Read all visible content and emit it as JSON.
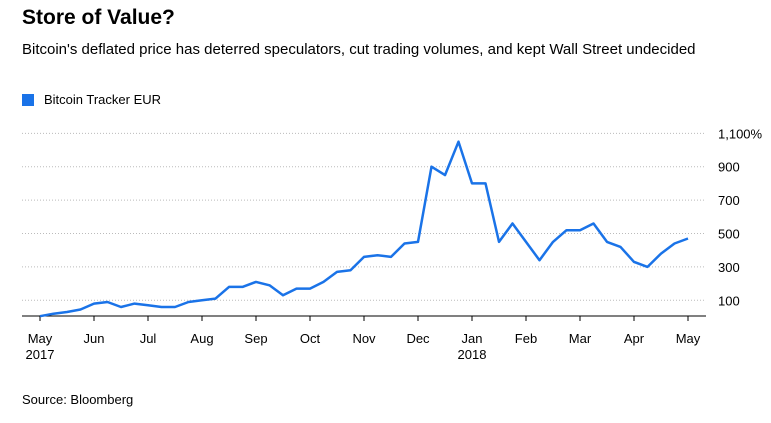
{
  "chart_data": {
    "type": "line",
    "title": "Store of Value?",
    "subtitle": "Bitcoin's deflated price has deterred speculators, cut trading volumes, and kept Wall Street undecided",
    "source": "Source: Bloomberg",
    "categories": [
      "May",
      null,
      null,
      null,
      "Jun",
      null,
      null,
      null,
      "Jul",
      null,
      null,
      null,
      "Aug",
      null,
      null,
      null,
      "Sep",
      null,
      null,
      null,
      "Oct",
      null,
      null,
      null,
      "Nov",
      null,
      null,
      null,
      "Dec",
      null,
      null,
      null,
      "Jan",
      null,
      null,
      null,
      "Feb",
      null,
      null,
      null,
      "Mar",
      null,
      null,
      null,
      "Apr",
      null,
      null,
      null,
      "May"
    ],
    "years": [
      "2017",
      null,
      null,
      null,
      null,
      null,
      null,
      null,
      null,
      null,
      null,
      null,
      null,
      null,
      null,
      null,
      null,
      null,
      null,
      null,
      null,
      null,
      null,
      null,
      null,
      null,
      null,
      null,
      null,
      null,
      null,
      null,
      "2018",
      null,
      null,
      null,
      null,
      null,
      null,
      null,
      null,
      null,
      null,
      null,
      null,
      null,
      null,
      null,
      null
    ],
    "series": [
      {
        "name": "Bitcoin Tracker EUR",
        "color": "#1a73e8",
        "values": [
          5,
          20,
          30,
          45,
          80,
          90,
          60,
          80,
          70,
          60,
          60,
          90,
          100,
          110,
          180,
          180,
          210,
          190,
          130,
          170,
          170,
          210,
          270,
          280,
          360,
          370,
          360,
          440,
          450,
          900,
          850,
          1050,
          800,
          800,
          450,
          560,
          450,
          340,
          450,
          520,
          520,
          560,
          450,
          420,
          330,
          300,
          380,
          440,
          470
        ]
      }
    ],
    "ylim": [
      0,
      1180
    ],
    "yticks": [
      100,
      300,
      500,
      700,
      900,
      {
        "value": 1100,
        "label": "1,100%"
      }
    ],
    "grid": true
  }
}
